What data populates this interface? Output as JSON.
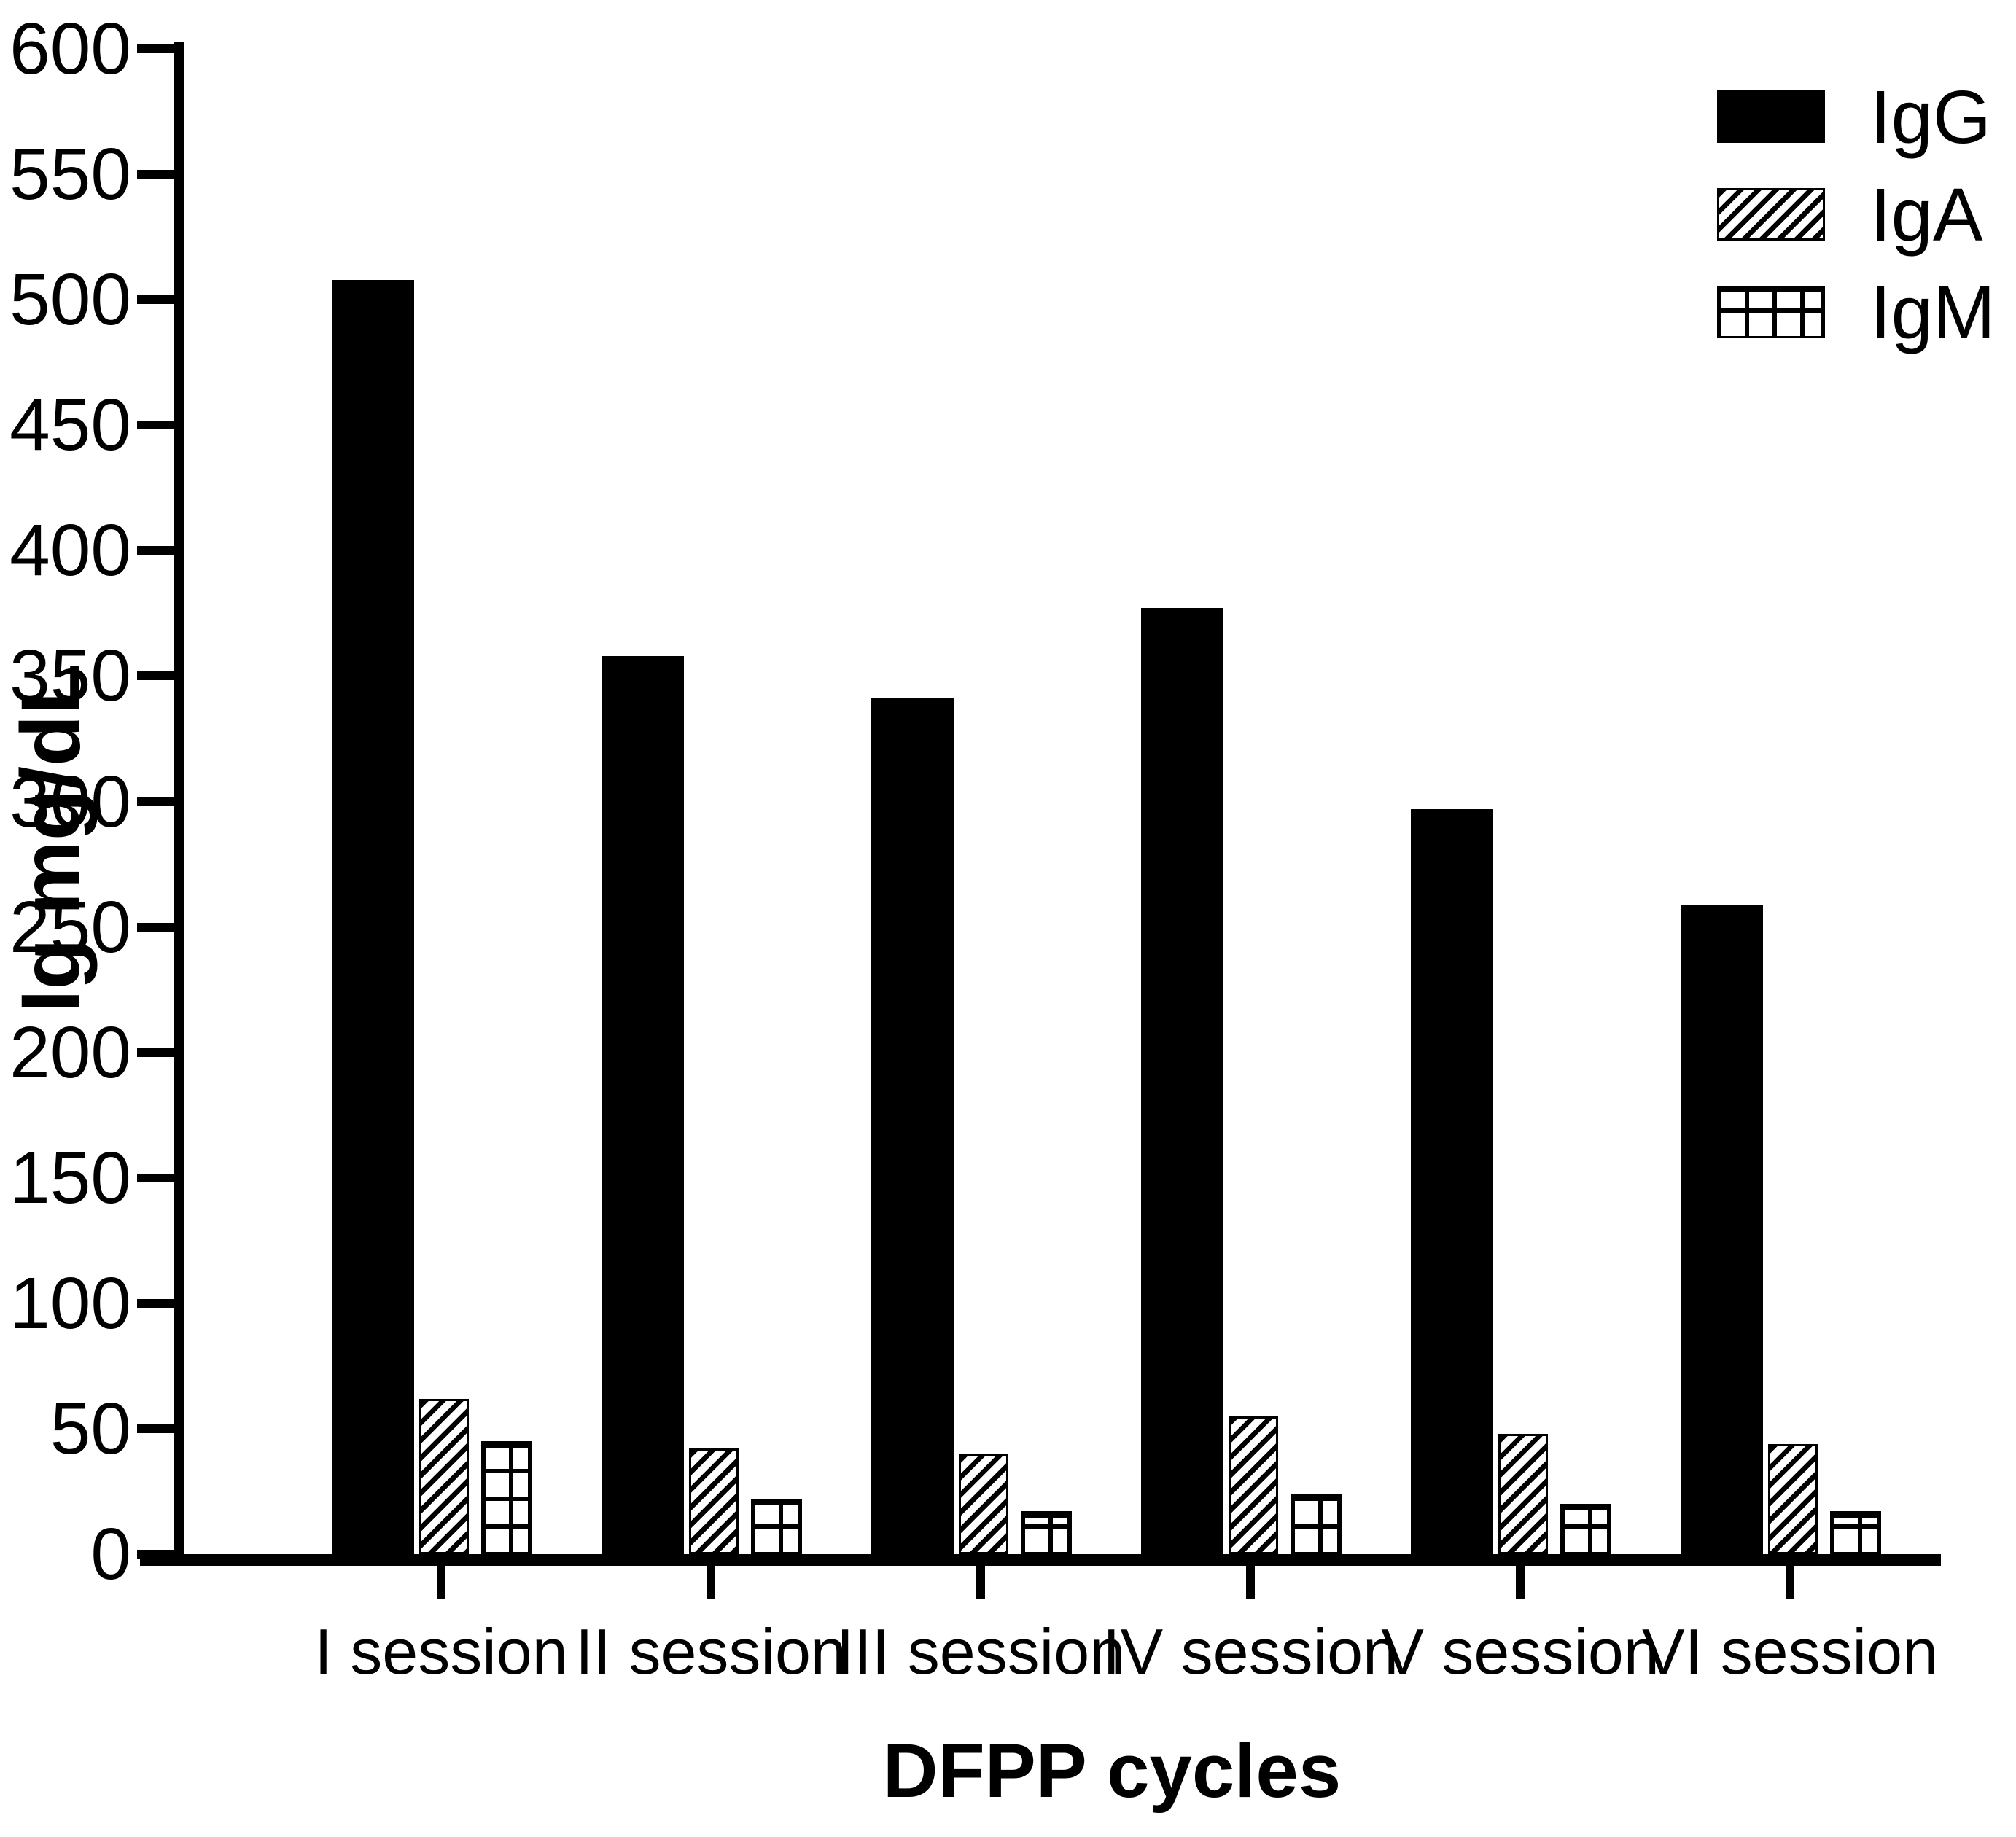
{
  "chart_data": {
    "type": "bar",
    "title": "",
    "xlabel": "DFPP cycles",
    "ylabel": "Ig mg/dL",
    "categories": [
      "I session",
      "II session",
      "III session",
      "IV session",
      "V session",
      "VI session"
    ],
    "series": [
      {
        "name": "IgG",
        "pattern": "solid",
        "values": [
          508,
          358,
          341,
          377,
          297,
          259
        ]
      },
      {
        "name": "IgA",
        "pattern": "diagonal-hatch",
        "values": [
          62,
          42,
          40,
          55,
          48,
          44
        ]
      },
      {
        "name": "IgM",
        "pattern": "grid",
        "values": [
          45,
          22,
          17,
          24,
          20,
          17
        ]
      }
    ],
    "ylim": [
      0,
      600
    ],
    "ytick_step": 50,
    "grid": false,
    "legend_position": "top-right",
    "colors": {
      "bar_fill": "#000000",
      "background": "#ffffff",
      "axis": "#000000"
    }
  }
}
